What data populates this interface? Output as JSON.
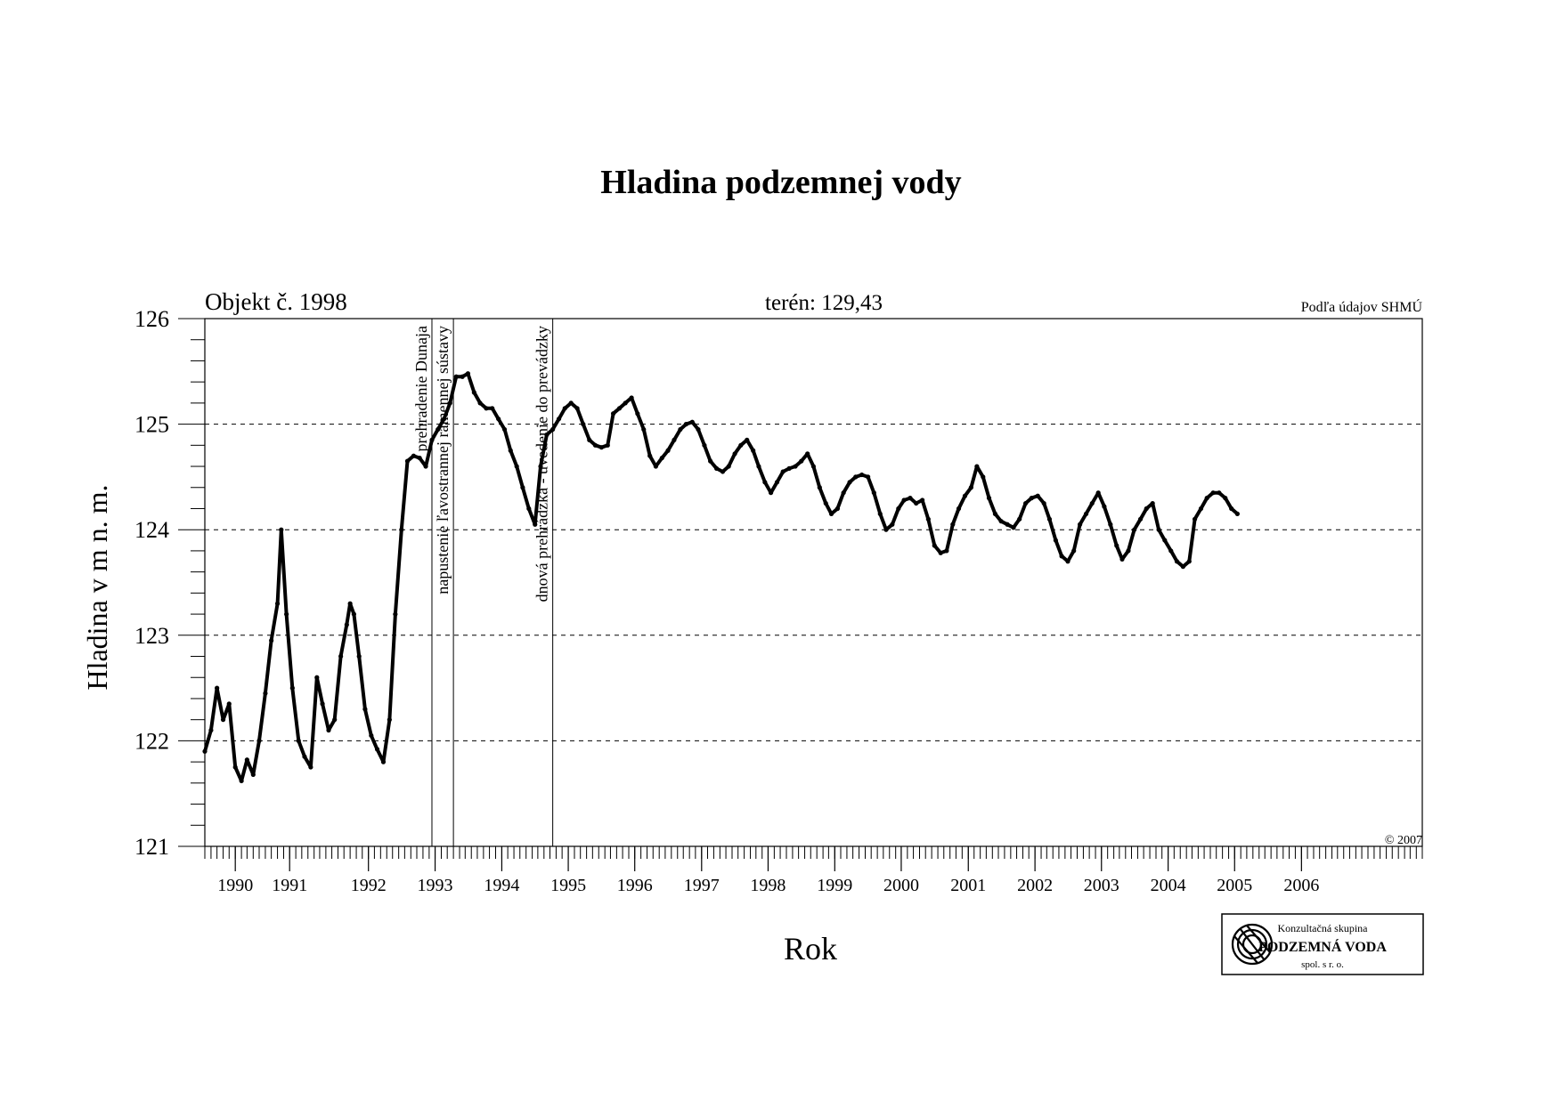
{
  "chart_data": {
    "type": "line",
    "title": "Hladina podzemnej vody",
    "subtitle_left": "Objekt č. 1998",
    "subtitle_center": "terén: 129,43",
    "source_note": "Podľa údajov SHMÚ",
    "copyright": "© 2007",
    "xlabel": "Rok",
    "ylabel": "Hladina v m n. m.",
    "xlim": [
      "1989-08-01",
      "2006-05-01"
    ],
    "ylim": [
      121,
      126
    ],
    "yticks": [
      121,
      122,
      123,
      124,
      125,
      126
    ],
    "ygrid_dashed": [
      122,
      123,
      124,
      125
    ],
    "xtick_labels": [
      {
        "label": "1990",
        "date": "1990-01-01"
      },
      {
        "label": "1991",
        "date": "1990-10-01"
      },
      {
        "label": "1992",
        "date": "1991-11-01"
      },
      {
        "label": "1993",
        "date": "1992-10-01"
      },
      {
        "label": "1994",
        "date": "1993-09-01"
      },
      {
        "label": "1995",
        "date": "1994-08-01"
      },
      {
        "label": "1996",
        "date": "1995-07-01"
      },
      {
        "label": "1997",
        "date": "1996-06-01"
      },
      {
        "label": "1998",
        "date": "1997-05-01"
      },
      {
        "label": "1999",
        "date": "1998-04-01"
      },
      {
        "label": "2000",
        "date": "1999-03-01"
      },
      {
        "label": "2001",
        "date": "2000-02-01"
      },
      {
        "label": "2002",
        "date": "2001-01-01"
      },
      {
        "label": "2003",
        "date": "2001-12-01"
      },
      {
        "label": "2004",
        "date": "2002-11-01"
      },
      {
        "label": "2005",
        "date": "2003-10-01"
      },
      {
        "label": "2006",
        "date": "2004-09-01"
      }
    ],
    "events": [
      {
        "date": "1992-09-15",
        "label": "prehradenie Dunaja"
      },
      {
        "date": "1993-01-01",
        "label": "napustenie ľavostrannej ramennej sústavy"
      },
      {
        "date": "1994-05-15",
        "label": "dnová prehrádzka - uvedenie do prevádzky"
      }
    ],
    "series": [
      {
        "points": [
          [
            "1989-08-01",
            121.9
          ],
          [
            "1989-09-01",
            122.1
          ],
          [
            "1989-10-01",
            122.5
          ],
          [
            "1989-11-01",
            122.2
          ],
          [
            "1989-12-01",
            122.35
          ],
          [
            "1990-01-01",
            121.75
          ],
          [
            "1990-02-01",
            121.62
          ],
          [
            "1990-03-01",
            121.82
          ],
          [
            "1990-04-01",
            121.68
          ],
          [
            "1990-05-01",
            122.0
          ],
          [
            "1990-06-01",
            122.45
          ],
          [
            "1990-07-01",
            122.95
          ],
          [
            "1990-08-01",
            123.3
          ],
          [
            "1990-08-20",
            124.0
          ],
          [
            "1990-09-15",
            123.2
          ],
          [
            "1990-10-15",
            122.5
          ],
          [
            "1990-11-15",
            122.0
          ],
          [
            "1990-12-15",
            121.85
          ],
          [
            "1991-01-15",
            121.75
          ],
          [
            "1991-02-15",
            122.6
          ],
          [
            "1991-03-15",
            122.35
          ],
          [
            "1991-04-15",
            122.1
          ],
          [
            "1991-05-15",
            122.2
          ],
          [
            "1991-06-15",
            122.8
          ],
          [
            "1991-07-15",
            123.1
          ],
          [
            "1991-08-01",
            123.3
          ],
          [
            "1991-08-20",
            123.2
          ],
          [
            "1991-09-15",
            122.8
          ],
          [
            "1991-10-15",
            122.3
          ],
          [
            "1991-11-15",
            122.05
          ],
          [
            "1991-12-15",
            121.92
          ],
          [
            "1992-01-15",
            121.8
          ],
          [
            "1992-02-15",
            122.2
          ],
          [
            "1992-03-15",
            123.2
          ],
          [
            "1992-04-15",
            124.0
          ],
          [
            "1992-05-15",
            124.65
          ],
          [
            "1992-06-15",
            124.7
          ],
          [
            "1992-07-15",
            124.68
          ],
          [
            "1992-08-15",
            124.6
          ],
          [
            "1992-09-15",
            124.85
          ],
          [
            "1992-10-15",
            124.95
          ],
          [
            "1992-11-15",
            125.05
          ],
          [
            "1992-12-15",
            125.2
          ],
          [
            "1993-01-15",
            125.45
          ],
          [
            "1993-02-15",
            125.45
          ],
          [
            "1993-03-15",
            125.48
          ],
          [
            "1993-04-15",
            125.3
          ],
          [
            "1993-05-15",
            125.2
          ],
          [
            "1993-06-15",
            125.15
          ],
          [
            "1993-07-15",
            125.15
          ],
          [
            "1993-08-15",
            125.05
          ],
          [
            "1993-09-15",
            124.95
          ],
          [
            "1993-10-15",
            124.75
          ],
          [
            "1993-11-15",
            124.6
          ],
          [
            "1993-12-15",
            124.4
          ],
          [
            "1994-01-15",
            124.2
          ],
          [
            "1994-02-15",
            124.05
          ],
          [
            "1994-03-15",
            124.6
          ],
          [
            "1994-04-15",
            124.9
          ],
          [
            "1994-05-15",
            124.95
          ],
          [
            "1994-06-15",
            125.05
          ],
          [
            "1994-07-15",
            125.15
          ],
          [
            "1994-08-15",
            125.2
          ],
          [
            "1994-09-15",
            125.15
          ],
          [
            "1994-10-15",
            125.0
          ],
          [
            "1994-11-15",
            124.85
          ],
          [
            "1994-12-15",
            124.8
          ],
          [
            "1995-01-15",
            124.78
          ],
          [
            "1995-02-15",
            124.8
          ],
          [
            "1995-03-15",
            125.1
          ],
          [
            "1995-04-15",
            125.15
          ],
          [
            "1995-05-15",
            125.2
          ],
          [
            "1995-06-15",
            125.25
          ],
          [
            "1995-07-15",
            125.1
          ],
          [
            "1995-08-15",
            124.95
          ],
          [
            "1995-09-15",
            124.7
          ],
          [
            "1995-10-15",
            124.6
          ],
          [
            "1995-11-15",
            124.68
          ],
          [
            "1995-12-15",
            124.75
          ],
          [
            "1996-01-15",
            124.85
          ],
          [
            "1996-02-15",
            124.95
          ],
          [
            "1996-03-15",
            125.0
          ],
          [
            "1996-04-15",
            125.02
          ],
          [
            "1996-05-15",
            124.95
          ],
          [
            "1996-06-15",
            124.8
          ],
          [
            "1996-07-15",
            124.65
          ],
          [
            "1996-08-15",
            124.58
          ],
          [
            "1996-09-15",
            124.55
          ],
          [
            "1996-10-15",
            124.6
          ],
          [
            "1996-11-15",
            124.72
          ],
          [
            "1996-12-15",
            124.8
          ],
          [
            "1997-01-15",
            124.85
          ],
          [
            "1997-02-15",
            124.75
          ],
          [
            "1997-03-15",
            124.6
          ],
          [
            "1997-04-15",
            124.45
          ],
          [
            "1997-05-15",
            124.35
          ],
          [
            "1997-06-15",
            124.45
          ],
          [
            "1997-07-15",
            124.55
          ],
          [
            "1997-08-15",
            124.58
          ],
          [
            "1997-09-15",
            124.6
          ],
          [
            "1997-10-15",
            124.65
          ],
          [
            "1997-11-15",
            124.72
          ],
          [
            "1997-12-15",
            124.6
          ],
          [
            "1998-01-15",
            124.4
          ],
          [
            "1998-02-15",
            124.25
          ],
          [
            "1998-03-15",
            124.15
          ],
          [
            "1998-04-15",
            124.2
          ],
          [
            "1998-05-15",
            124.35
          ],
          [
            "1998-06-15",
            124.45
          ],
          [
            "1998-07-15",
            124.5
          ],
          [
            "1998-08-15",
            124.52
          ],
          [
            "1998-09-15",
            124.5
          ],
          [
            "1998-10-15",
            124.35
          ],
          [
            "1998-11-15",
            124.15
          ],
          [
            "1998-12-15",
            124.0
          ],
          [
            "1999-01-15",
            124.05
          ],
          [
            "1999-02-15",
            124.2
          ],
          [
            "1999-03-15",
            124.28
          ],
          [
            "1999-04-15",
            124.3
          ],
          [
            "1999-05-15",
            124.25
          ],
          [
            "1999-06-15",
            124.28
          ],
          [
            "1999-07-15",
            124.1
          ],
          [
            "1999-08-15",
            123.85
          ],
          [
            "1999-09-15",
            123.78
          ],
          [
            "1999-10-15",
            123.8
          ],
          [
            "1999-11-15",
            124.05
          ],
          [
            "1999-12-15",
            124.2
          ],
          [
            "2000-01-15",
            124.32
          ],
          [
            "2000-02-15",
            124.4
          ],
          [
            "2000-03-15",
            124.6
          ],
          [
            "2000-04-15",
            124.5
          ],
          [
            "2000-05-15",
            124.3
          ],
          [
            "2000-06-15",
            124.15
          ],
          [
            "2000-07-15",
            124.08
          ],
          [
            "2000-08-15",
            124.05
          ],
          [
            "2000-09-15",
            124.02
          ],
          [
            "2000-10-15",
            124.1
          ],
          [
            "2000-11-15",
            124.25
          ],
          [
            "2000-12-15",
            124.3
          ],
          [
            "2001-01-15",
            124.32
          ],
          [
            "2001-02-15",
            124.25
          ],
          [
            "2001-03-15",
            124.1
          ],
          [
            "2001-04-15",
            123.9
          ],
          [
            "2001-05-15",
            123.75
          ],
          [
            "2001-06-15",
            123.7
          ],
          [
            "2001-07-15",
            123.8
          ],
          [
            "2001-08-15",
            124.05
          ],
          [
            "2001-09-15",
            124.15
          ],
          [
            "2001-10-15",
            124.25
          ],
          [
            "2001-11-15",
            124.35
          ],
          [
            "2001-12-15",
            124.22
          ],
          [
            "2002-01-15",
            124.05
          ],
          [
            "2002-02-15",
            123.85
          ],
          [
            "2002-03-15",
            123.72
          ],
          [
            "2002-04-15",
            123.8
          ],
          [
            "2002-05-15",
            124.0
          ],
          [
            "2002-06-15",
            124.1
          ],
          [
            "2002-07-15",
            124.2
          ],
          [
            "2002-08-15",
            124.25
          ],
          [
            "2002-09-15",
            124.0
          ],
          [
            "2002-10-15",
            123.9
          ],
          [
            "2002-11-15",
            123.8
          ],
          [
            "2002-12-15",
            123.7
          ],
          [
            "2003-01-15",
            123.65
          ],
          [
            "2003-02-15",
            123.7
          ],
          [
            "2003-03-15",
            124.1
          ],
          [
            "2003-04-15",
            124.2
          ],
          [
            "2003-05-15",
            124.3
          ],
          [
            "2003-06-15",
            124.35
          ],
          [
            "2003-07-15",
            124.35
          ],
          [
            "2003-08-15",
            124.3
          ],
          [
            "2003-09-15",
            124.2
          ],
          [
            "2003-10-15",
            124.15
          ]
        ]
      }
    ],
    "legend": "none",
    "grid": "horizontal dashed"
  },
  "logo": {
    "line1": "Konzultačná skupina",
    "line2": "PODZEMNÁ VODA",
    "line3": "spol. s r. o."
  }
}
